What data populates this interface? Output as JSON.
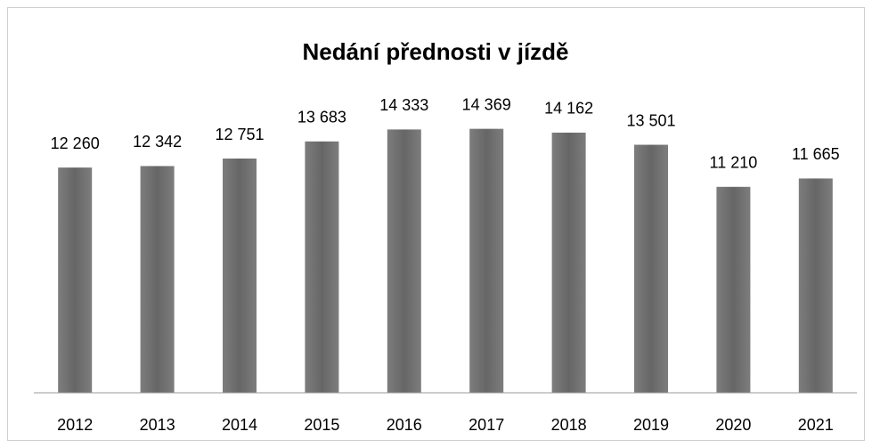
{
  "chart_data": {
    "type": "bar",
    "title": "Nedání přednosti v jízdě",
    "categories": [
      "2012",
      "2013",
      "2014",
      "2015",
      "2016",
      "2017",
      "2018",
      "2019",
      "2020",
      "2021"
    ],
    "values": [
      12260,
      12342,
      12751,
      13683,
      14333,
      14369,
      14162,
      13501,
      11210,
      11665
    ],
    "value_labels": [
      "12 260",
      "12 342",
      "12 751",
      "13 683",
      "14 333",
      "14 369",
      "14 162",
      "13 501",
      "11 210",
      "11 665"
    ],
    "color": "#666666",
    "ylim": [
      0,
      16000
    ]
  }
}
